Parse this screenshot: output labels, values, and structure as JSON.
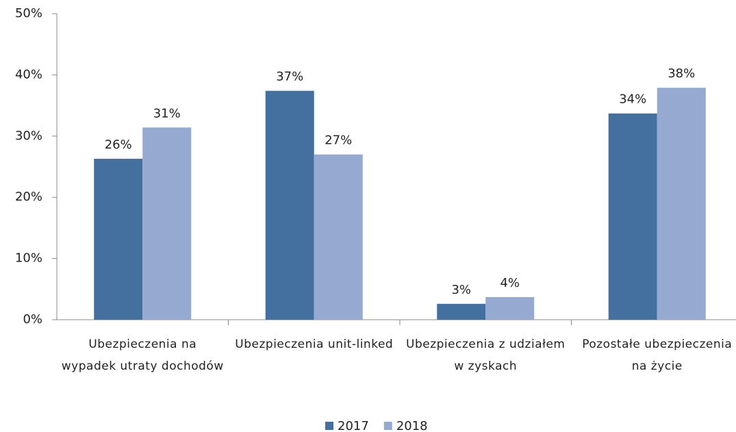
{
  "chart_data": {
    "type": "bar",
    "categories": [
      "Ubezpieczenia na wypadek utraty dochodów",
      "Ubezpieczenia unit-linked",
      "Ubezpieczenia z udziałem w zyskach",
      "Pozostałe ubezpieczenia na życie"
    ],
    "series": [
      {
        "name": "2017",
        "color": "#44709f",
        "values": [
          26.3,
          37.4,
          2.6,
          33.7
        ],
        "value_labels": [
          "26%",
          "37%",
          "3%",
          "34%"
        ]
      },
      {
        "name": "2018",
        "color": "#95a9d1",
        "values": [
          31.4,
          27.0,
          3.7,
          37.9
        ],
        "value_labels": [
          "31%",
          "27%",
          "4%",
          "38%"
        ]
      }
    ],
    "ylim": [
      0,
      50
    ],
    "yticks": [
      {
        "value": 0,
        "label": "0%"
      },
      {
        "value": 10,
        "label": "10%"
      },
      {
        "value": 20,
        "label": "20%"
      },
      {
        "value": 30,
        "label": "30%"
      },
      {
        "value": 40,
        "label": "40%"
      },
      {
        "value": 50,
        "label": "50%"
      }
    ],
    "grid": false,
    "legend": "bottom"
  }
}
